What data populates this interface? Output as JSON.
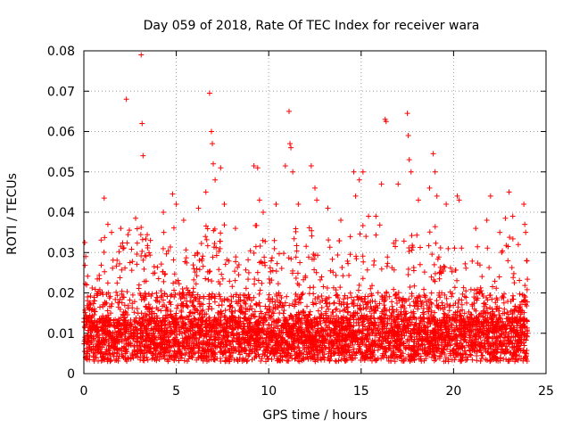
{
  "chart_data": {
    "type": "scatter",
    "title": "Day 059 of 2018, Rate Of TEC Index for receiver wara",
    "xlabel": "GPS time / hours",
    "ylabel": "ROTI / TECUs",
    "xlim": [
      0,
      25
    ],
    "ylim": [
      0,
      0.08
    ],
    "xticks": [
      0,
      5,
      10,
      15,
      20,
      25
    ],
    "yticks": [
      0,
      0.01,
      0.02,
      0.03,
      0.04,
      0.05,
      0.06,
      0.07,
      0.08
    ],
    "xtick_labels": [
      "0",
      "5",
      "10",
      "15",
      "20",
      "25"
    ],
    "ytick_labels": [
      "0",
      "0.01",
      "0.02",
      "0.03",
      "0.04",
      "0.05",
      "0.06",
      "0.07",
      "0.08"
    ],
    "grid": true,
    "marker": "+",
    "color": "#ff0000",
    "series": [
      {
        "name": "ROTI",
        "points": [
          [
            0.05,
            0.0325
          ],
          [
            0.1,
            0.029
          ],
          [
            0.15,
            0.022
          ],
          [
            0.2,
            0.019
          ],
          [
            0.3,
            0.016
          ],
          [
            1.1,
            0.0435
          ],
          [
            1.3,
            0.037
          ],
          [
            1.5,
            0.035
          ],
          [
            2.0,
            0.036
          ],
          [
            2.3,
            0.068
          ],
          [
            2.8,
            0.0385
          ],
          [
            3.1,
            0.079
          ],
          [
            3.15,
            0.062
          ],
          [
            3.2,
            0.054
          ],
          [
            3.6,
            0.033
          ],
          [
            4.3,
            0.04
          ],
          [
            4.8,
            0.0445
          ],
          [
            5.0,
            0.042
          ],
          [
            5.4,
            0.038
          ],
          [
            6.2,
            0.041
          ],
          [
            6.6,
            0.045
          ],
          [
            6.8,
            0.0695
          ],
          [
            6.9,
            0.06
          ],
          [
            6.95,
            0.057
          ],
          [
            7.0,
            0.052
          ],
          [
            7.1,
            0.048
          ],
          [
            7.4,
            0.051
          ],
          [
            7.6,
            0.042
          ],
          [
            8.2,
            0.036
          ],
          [
            9.2,
            0.0515
          ],
          [
            9.4,
            0.051
          ],
          [
            9.5,
            0.043
          ],
          [
            9.7,
            0.04
          ],
          [
            10.4,
            0.042
          ],
          [
            10.9,
            0.0515
          ],
          [
            11.1,
            0.065
          ],
          [
            11.15,
            0.057
          ],
          [
            11.2,
            0.056
          ],
          [
            11.3,
            0.05
          ],
          [
            11.6,
            0.042
          ],
          [
            12.3,
            0.0515
          ],
          [
            12.5,
            0.046
          ],
          [
            12.6,
            0.043
          ],
          [
            13.2,
            0.041
          ],
          [
            13.9,
            0.038
          ],
          [
            14.6,
            0.05
          ],
          [
            14.7,
            0.044
          ],
          [
            14.9,
            0.048
          ],
          [
            15.1,
            0.05
          ],
          [
            15.4,
            0.039
          ],
          [
            15.8,
            0.039
          ],
          [
            16.1,
            0.047
          ],
          [
            16.3,
            0.063
          ],
          [
            16.35,
            0.0625
          ],
          [
            17.0,
            0.047
          ],
          [
            17.5,
            0.0645
          ],
          [
            17.55,
            0.059
          ],
          [
            17.6,
            0.053
          ],
          [
            17.7,
            0.05
          ],
          [
            18.1,
            0.043
          ],
          [
            18.7,
            0.046
          ],
          [
            18.9,
            0.0545
          ],
          [
            19.0,
            0.05
          ],
          [
            19.1,
            0.044
          ],
          [
            19.6,
            0.042
          ],
          [
            20.2,
            0.044
          ],
          [
            20.3,
            0.043
          ],
          [
            21.2,
            0.036
          ],
          [
            21.8,
            0.038
          ],
          [
            22.0,
            0.044
          ],
          [
            22.5,
            0.035
          ],
          [
            22.8,
            0.0385
          ],
          [
            23.0,
            0.045
          ],
          [
            23.2,
            0.039
          ],
          [
            23.5,
            0.032
          ],
          [
            23.8,
            0.042
          ],
          [
            23.85,
            0.037
          ],
          [
            23.9,
            0.035
          ],
          [
            23.95,
            0.028
          ],
          [
            24.0,
            0.01
          ]
        ]
      }
    ]
  }
}
